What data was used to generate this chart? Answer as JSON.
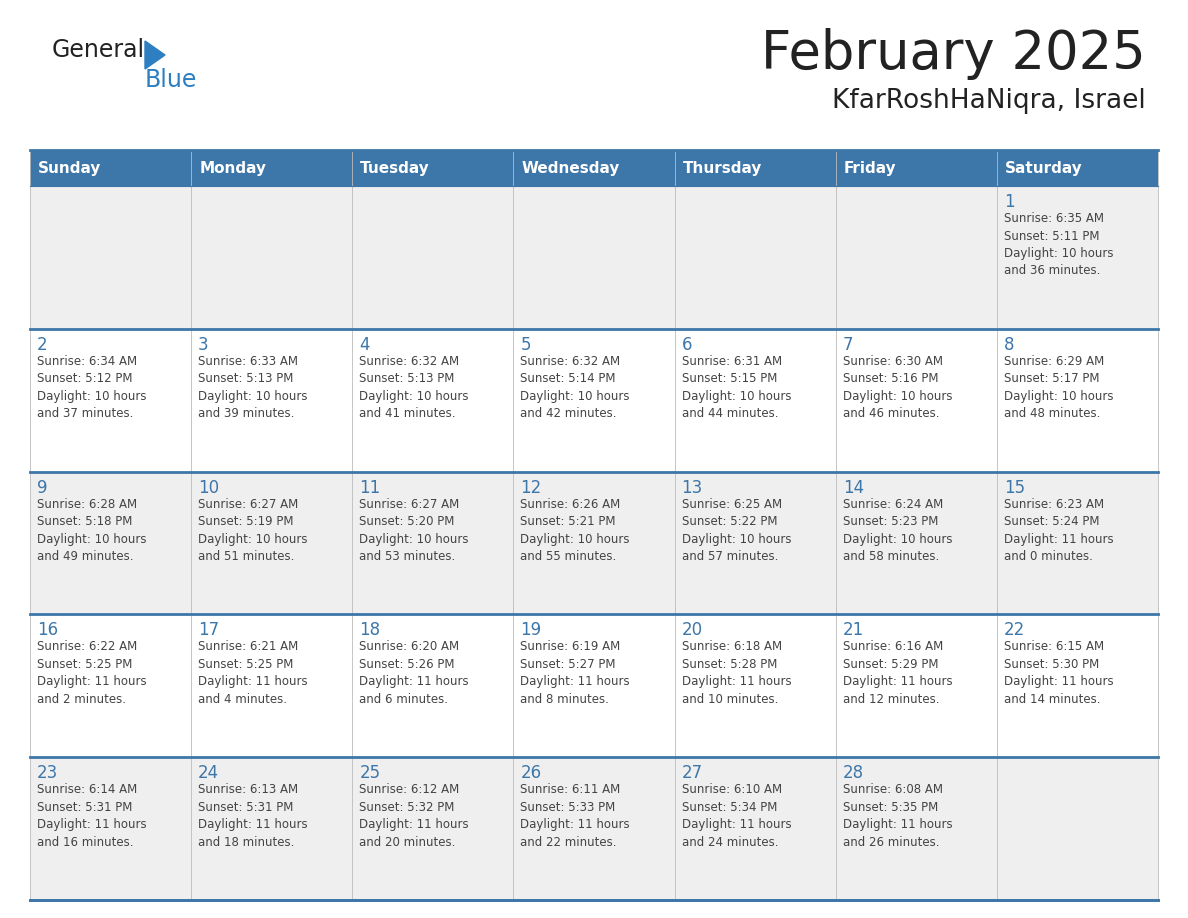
{
  "title": "February 2025",
  "subtitle": "KfarRoshHaNiqra, Israel",
  "days_of_week": [
    "Sunday",
    "Monday",
    "Tuesday",
    "Wednesday",
    "Thursday",
    "Friday",
    "Saturday"
  ],
  "header_bg_color": "#3D76A8",
  "header_text_color": "#FFFFFF",
  "cell_bg_colors": [
    "#EFEFEF",
    "#FFFFFF",
    "#EFEFEF",
    "#FFFFFF",
    "#EFEFEF"
  ],
  "day_number_color": "#3D76A8",
  "info_text_color": "#444444",
  "border_color": "#3D76A8",
  "divider_color": "#3D76A8",
  "title_color": "#222222",
  "subtitle_color": "#222222",
  "logo_general_color": "#222222",
  "logo_blue_color": "#2D7FC1",
  "weeks": [
    [
      {
        "day": null,
        "info": ""
      },
      {
        "day": null,
        "info": ""
      },
      {
        "day": null,
        "info": ""
      },
      {
        "day": null,
        "info": ""
      },
      {
        "day": null,
        "info": ""
      },
      {
        "day": null,
        "info": ""
      },
      {
        "day": 1,
        "info": "Sunrise: 6:35 AM\nSunset: 5:11 PM\nDaylight: 10 hours\nand 36 minutes."
      }
    ],
    [
      {
        "day": 2,
        "info": "Sunrise: 6:34 AM\nSunset: 5:12 PM\nDaylight: 10 hours\nand 37 minutes."
      },
      {
        "day": 3,
        "info": "Sunrise: 6:33 AM\nSunset: 5:13 PM\nDaylight: 10 hours\nand 39 minutes."
      },
      {
        "day": 4,
        "info": "Sunrise: 6:32 AM\nSunset: 5:13 PM\nDaylight: 10 hours\nand 41 minutes."
      },
      {
        "day": 5,
        "info": "Sunrise: 6:32 AM\nSunset: 5:14 PM\nDaylight: 10 hours\nand 42 minutes."
      },
      {
        "day": 6,
        "info": "Sunrise: 6:31 AM\nSunset: 5:15 PM\nDaylight: 10 hours\nand 44 minutes."
      },
      {
        "day": 7,
        "info": "Sunrise: 6:30 AM\nSunset: 5:16 PM\nDaylight: 10 hours\nand 46 minutes."
      },
      {
        "day": 8,
        "info": "Sunrise: 6:29 AM\nSunset: 5:17 PM\nDaylight: 10 hours\nand 48 minutes."
      }
    ],
    [
      {
        "day": 9,
        "info": "Sunrise: 6:28 AM\nSunset: 5:18 PM\nDaylight: 10 hours\nand 49 minutes."
      },
      {
        "day": 10,
        "info": "Sunrise: 6:27 AM\nSunset: 5:19 PM\nDaylight: 10 hours\nand 51 minutes."
      },
      {
        "day": 11,
        "info": "Sunrise: 6:27 AM\nSunset: 5:20 PM\nDaylight: 10 hours\nand 53 minutes."
      },
      {
        "day": 12,
        "info": "Sunrise: 6:26 AM\nSunset: 5:21 PM\nDaylight: 10 hours\nand 55 minutes."
      },
      {
        "day": 13,
        "info": "Sunrise: 6:25 AM\nSunset: 5:22 PM\nDaylight: 10 hours\nand 57 minutes."
      },
      {
        "day": 14,
        "info": "Sunrise: 6:24 AM\nSunset: 5:23 PM\nDaylight: 10 hours\nand 58 minutes."
      },
      {
        "day": 15,
        "info": "Sunrise: 6:23 AM\nSunset: 5:24 PM\nDaylight: 11 hours\nand 0 minutes."
      }
    ],
    [
      {
        "day": 16,
        "info": "Sunrise: 6:22 AM\nSunset: 5:25 PM\nDaylight: 11 hours\nand 2 minutes."
      },
      {
        "day": 17,
        "info": "Sunrise: 6:21 AM\nSunset: 5:25 PM\nDaylight: 11 hours\nand 4 minutes."
      },
      {
        "day": 18,
        "info": "Sunrise: 6:20 AM\nSunset: 5:26 PM\nDaylight: 11 hours\nand 6 minutes."
      },
      {
        "day": 19,
        "info": "Sunrise: 6:19 AM\nSunset: 5:27 PM\nDaylight: 11 hours\nand 8 minutes."
      },
      {
        "day": 20,
        "info": "Sunrise: 6:18 AM\nSunset: 5:28 PM\nDaylight: 11 hours\nand 10 minutes."
      },
      {
        "day": 21,
        "info": "Sunrise: 6:16 AM\nSunset: 5:29 PM\nDaylight: 11 hours\nand 12 minutes."
      },
      {
        "day": 22,
        "info": "Sunrise: 6:15 AM\nSunset: 5:30 PM\nDaylight: 11 hours\nand 14 minutes."
      }
    ],
    [
      {
        "day": 23,
        "info": "Sunrise: 6:14 AM\nSunset: 5:31 PM\nDaylight: 11 hours\nand 16 minutes."
      },
      {
        "day": 24,
        "info": "Sunrise: 6:13 AM\nSunset: 5:31 PM\nDaylight: 11 hours\nand 18 minutes."
      },
      {
        "day": 25,
        "info": "Sunrise: 6:12 AM\nSunset: 5:32 PM\nDaylight: 11 hours\nand 20 minutes."
      },
      {
        "day": 26,
        "info": "Sunrise: 6:11 AM\nSunset: 5:33 PM\nDaylight: 11 hours\nand 22 minutes."
      },
      {
        "day": 27,
        "info": "Sunrise: 6:10 AM\nSunset: 5:34 PM\nDaylight: 11 hours\nand 24 minutes."
      },
      {
        "day": 28,
        "info": "Sunrise: 6:08 AM\nSunset: 5:35 PM\nDaylight: 11 hours\nand 26 minutes."
      },
      {
        "day": null,
        "info": ""
      }
    ]
  ]
}
